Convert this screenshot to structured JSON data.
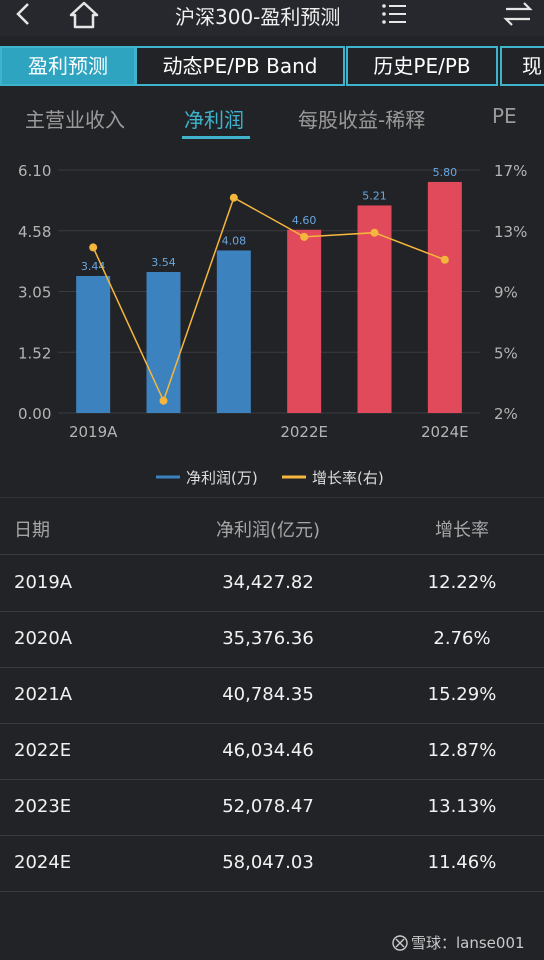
{
  "header": {
    "title": "沪深300-盈利预测",
    "icons": [
      "back-arrow-icon",
      "home-icon",
      "list-icon",
      "swap-icon"
    ]
  },
  "primary_tabs": [
    {
      "label": "盈利预测",
      "active": true
    },
    {
      "label": "动态PE/PB Band",
      "active": false
    },
    {
      "label": "历史PE/PB",
      "active": false
    },
    {
      "label": "现",
      "active": false
    }
  ],
  "secondary_tabs": [
    {
      "label": "主营业收入",
      "active": false
    },
    {
      "label": "净利润",
      "active": true
    },
    {
      "label": "每股收益-稀释",
      "active": false
    },
    {
      "label": "PE",
      "active": false
    }
  ],
  "chart_data": {
    "type": "bar",
    "categories": [
      "2019A",
      "2020A",
      "2021A",
      "2022E",
      "2023E",
      "2024E"
    ],
    "x_tick_labels": [
      "2019A",
      "",
      "",
      "2022E",
      "",
      "2024E"
    ],
    "series": [
      {
        "name": "净利润(万)",
        "type": "bar",
        "axis": "left",
        "values": [
          3.44,
          3.54,
          4.08,
          4.6,
          5.21,
          5.8
        ],
        "data_labels": [
          "3.44",
          "3.54",
          "4.08",
          "4.60",
          "5.21",
          "5.80"
        ],
        "colors": [
          "#3c82bf",
          "#3c82bf",
          "#3c82bf",
          "#e04a5a",
          "#e04a5a",
          "#e04a5a"
        ]
      },
      {
        "name": "增长率(右)",
        "type": "line",
        "axis": "right",
        "values": [
          12.22,
          2.76,
          15.29,
          12.87,
          13.13,
          11.46
        ],
        "color": "#f5b63d"
      }
    ],
    "left_axis": {
      "ticks": [
        "6.10",
        "4.58",
        "3.05",
        "1.52",
        "0.00"
      ],
      "ylim": [
        0,
        6.1
      ]
    },
    "right_axis": {
      "ticks": [
        "17%",
        "13%",
        "9%",
        "5%",
        "2%"
      ],
      "ylim": [
        2,
        17
      ]
    },
    "legend": [
      {
        "label": "净利润(万)",
        "color": "#3c82bf"
      },
      {
        "label": "增长率(右)",
        "color": "#f5b63d"
      }
    ],
    "legend_position": "bottom-center",
    "grid": true
  },
  "table": {
    "headers": [
      "日期",
      "净利润(亿元)",
      "增长率"
    ],
    "rows": [
      [
        "2019A",
        "34,427.82",
        "12.22%"
      ],
      [
        "2020A",
        "35,376.36",
        "2.76%"
      ],
      [
        "2021A",
        "40,784.35",
        "15.29%"
      ],
      [
        "2022E",
        "46,034.46",
        "12.87%"
      ],
      [
        "2023E",
        "52,078.47",
        "13.13%"
      ],
      [
        "2024E",
        "58,047.03",
        "11.46%"
      ]
    ]
  },
  "watermark": {
    "text": "雪球：lanse001"
  },
  "colors": {
    "background": "#222327",
    "accent": "#3fb2cc",
    "bar_actual": "#3c82bf",
    "bar_estimate": "#e04a5a",
    "growth_line": "#f5b63d"
  }
}
